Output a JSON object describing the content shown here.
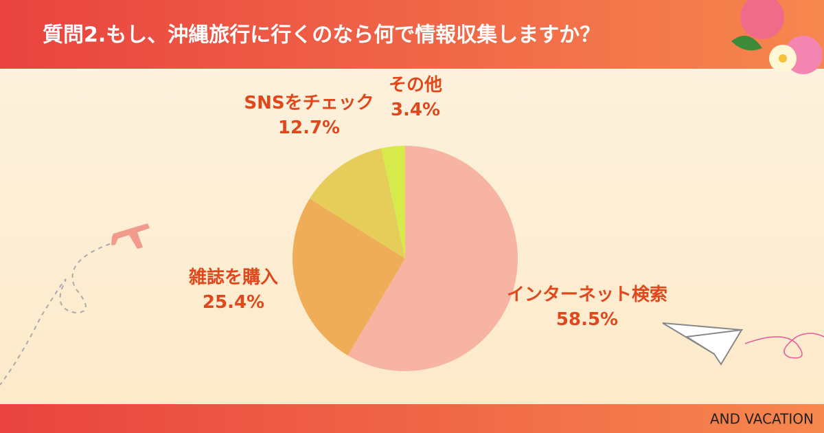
{
  "chart_data": {
    "type": "pie",
    "title": "質問2.もし、沖縄旅行に行くのなら何で情報収集しますか？",
    "categories": [
      "インターネット検索",
      "雑誌を購入",
      "SNSをチェック",
      "その他"
    ],
    "values": [
      58.5,
      25.4,
      12.7,
      3.4
    ],
    "value_labels": [
      "58.5%",
      "25.4%",
      "12.7%",
      "3.4%"
    ],
    "colors": [
      "#f7b4a2",
      "#efad57",
      "#e6cc58",
      "#d6ea4c"
    ]
  },
  "footer": "AND VACATION"
}
